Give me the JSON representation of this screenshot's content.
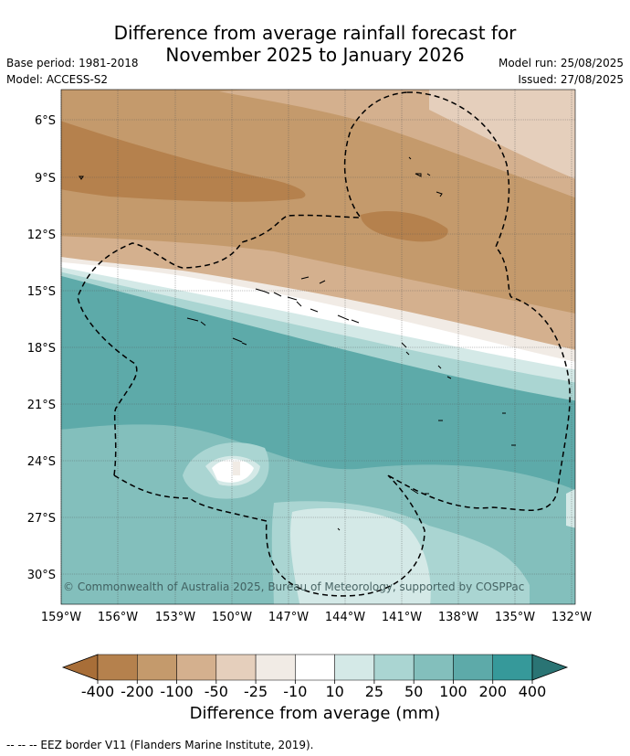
{
  "title": {
    "line1": "Difference from average rainfall forecast for",
    "line2": "November 2025 to January 2026"
  },
  "meta_left": {
    "base_period": "Base period: 1981-2018",
    "model": "Model: ACCESS-S2"
  },
  "meta_right": {
    "model_run": "Model run: 25/08/2025",
    "issued": "Issued: 27/08/2025"
  },
  "copyright": "© Commonwealth of Australia 2025, Bureau of Meteorology, supported by COSPPac",
  "lat_labels": [
    "6°S",
    "9°S",
    "12°S",
    "15°S",
    "18°S",
    "21°S",
    "24°S",
    "27°S",
    "30°S"
  ],
  "lon_labels": [
    "159°W",
    "156°W",
    "153°W",
    "150°W",
    "147°W",
    "144°W",
    "141°W",
    "138°W",
    "135°W",
    "132°W"
  ],
  "colorbar": {
    "labels": [
      "-400",
      "-200",
      "-100",
      "-50",
      "-25",
      "-10",
      "10",
      "25",
      "50",
      "100",
      "200",
      "400"
    ],
    "colors": [
      "#a86e38",
      "#b5814d",
      "#c49a6c",
      "#d4b08e",
      "#e5cfbc",
      "#f1ebe5",
      "#ffffff",
      "#d4e9e7",
      "#aad5d2",
      "#83bfbc",
      "#5daaa9",
      "#36999a",
      "#2a7474"
    ],
    "title": "Difference from average (mm)"
  },
  "legend_footer": "-- -- -- EEZ border V11 (Flanders Marine Institute, 2019)."
}
